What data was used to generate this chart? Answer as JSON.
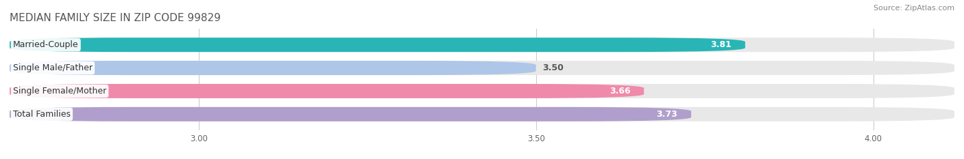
{
  "title": "MEDIAN FAMILY SIZE IN ZIP CODE 99829",
  "source": "Source: ZipAtlas.com",
  "categories": [
    "Married-Couple",
    "Single Male/Father",
    "Single Female/Mother",
    "Total Families"
  ],
  "values": [
    3.81,
    3.5,
    3.66,
    3.73
  ],
  "bar_colors": [
    "#29b5b5",
    "#aec6e8",
    "#f08aaa",
    "#b09fcc"
  ],
  "value_label_colors": [
    "white",
    "#555555",
    "white",
    "white"
  ],
  "xlim_min": 2.72,
  "xlim_max": 4.12,
  "xticks": [
    3.0,
    3.5,
    4.0
  ],
  "xtick_labels": [
    "3.00",
    "3.50",
    "4.00"
  ],
  "background_color": "#ffffff",
  "bar_bg_color": "#e8e8e8",
  "title_fontsize": 11,
  "source_fontsize": 8,
  "cat_label_fontsize": 9,
  "value_fontsize": 9,
  "bar_height": 0.62,
  "bar_gap": 0.38,
  "rounding_size": 0.18
}
